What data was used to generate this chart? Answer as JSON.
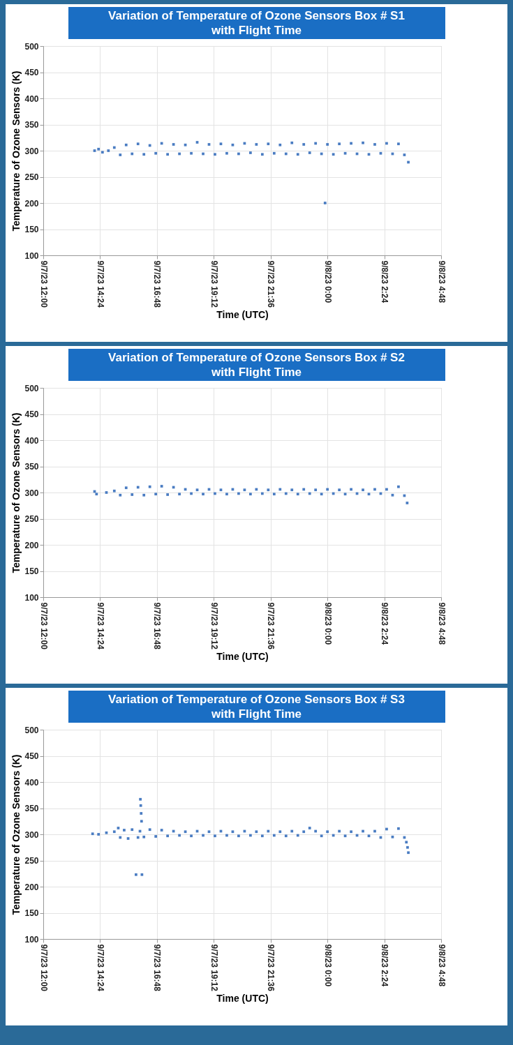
{
  "chart_data": [
    {
      "type": "scatter",
      "title": "Variation of Temperature of Ozone Sensors Box # S1 with Flight Time",
      "xlabel": "Time (UTC)",
      "ylabel": "Temperature of Ozone Sensors (K)",
      "color": "#4a7cc2",
      "marker": "square",
      "grid": true,
      "x": [
        "--09-07T14:10",
        "--09-07T14:20",
        "--09-07T14:30",
        "--09-07T14:45",
        "--09-07T15:00",
        "--09-07T15:15",
        "--09-07T15:30",
        "--09-07T15:45",
        "--09-07T16:00",
        "--09-07T16:15",
        "--09-07T16:30",
        "--09-07T16:45",
        "--09-07T17:00",
        "--09-07T17:15",
        "--09-07T17:30",
        "--09-07T17:45",
        "--09-07T18:00",
        "--09-07T18:15",
        "--09-07T18:30",
        "--09-07T18:45",
        "--09-07T19:00",
        "--09-07T19:15",
        "--09-07T19:30",
        "--09-07T19:45",
        "--09-07T20:00",
        "--09-07T20:15",
        "--09-07T20:30",
        "--09-07T20:45",
        "--09-07T21:00",
        "--09-07T21:15",
        "--09-07T21:30",
        "--09-07T21:45",
        "--09-07T22:00",
        "--09-07T22:15",
        "--09-07T22:30",
        "--09-07T22:45",
        "--09-07T23:00",
        "--09-07T23:15",
        "--09-07T23:30",
        "--09-07T23:45",
        "--09-08T00:00",
        "--09-08T00:15",
        "--09-08T00:30",
        "--09-08T00:45",
        "--09-08T01:00",
        "--09-08T01:15",
        "--09-08T01:30",
        "--09-08T01:45",
        "--09-08T02:00",
        "--09-08T02:15",
        "--09-08T02:30",
        "--09-08T02:45",
        "--09-08T03:00",
        "--09-08T03:15",
        "--09-07T23:54",
        "--09-08T03:25"
      ],
      "values": [
        300,
        303,
        297,
        300,
        306,
        292,
        311,
        294,
        313,
        293,
        310,
        295,
        314,
        293,
        312,
        294,
        311,
        295,
        316,
        294,
        312,
        293,
        313,
        295,
        311,
        294,
        314,
        296,
        312,
        293,
        313,
        295,
        311,
        294,
        315,
        293,
        312,
        296,
        314,
        294,
        312,
        293,
        313,
        295,
        314,
        294,
        315,
        293,
        312,
        295,
        314,
        294,
        313,
        292,
        200,
        278
      ],
      "xlim": [
        "--09-07T12:00",
        "--09-08T04:48"
      ],
      "xticks": [
        {
          "value": "--09-07T12:00",
          "label": "9/7/23 12:00"
        },
        {
          "value": "--09-07T14:24",
          "label": "9/7/23 14:24"
        },
        {
          "value": "--09-07T16:48",
          "label": "9/7/23 16:48"
        },
        {
          "value": "--09-07T19:12",
          "label": "9/7/23 19:12"
        },
        {
          "value": "--09-07T21:36",
          "label": "9/7/23 21:36"
        },
        {
          "value": "--09-08T00:00",
          "label": "9/8/23 0:00"
        },
        {
          "value": "--09-08T02:24",
          "label": "9/8/23 2:24"
        },
        {
          "value": "--09-08T04:48",
          "label": "9/8/23 4:48"
        }
      ],
      "ylim": [
        100,
        500
      ],
      "yticks": [
        100,
        150,
        200,
        250,
        300,
        350,
        400,
        450,
        500
      ]
    },
    {
      "type": "scatter",
      "title": "Variation of Temperature of Ozone Sensors Box # S2 with Flight Time",
      "xlabel": "Time (UTC)",
      "ylabel": "Temperature of Ozone Sensors (K)",
      "color": "#4a7cc2",
      "marker": "square",
      "grid": true,
      "x": [
        "--09-07T14:10",
        "--09-07T14:15",
        "--09-07T14:40",
        "--09-07T15:00",
        "--09-07T15:15",
        "--09-07T15:30",
        "--09-07T15:45",
        "--09-07T16:00",
        "--09-07T16:15",
        "--09-07T16:30",
        "--09-07T16:45",
        "--09-07T17:00",
        "--09-07T17:15",
        "--09-07T17:30",
        "--09-07T17:45",
        "--09-07T18:00",
        "--09-07T18:15",
        "--09-07T18:30",
        "--09-07T18:45",
        "--09-07T19:00",
        "--09-07T19:15",
        "--09-07T19:30",
        "--09-07T19:45",
        "--09-07T20:00",
        "--09-07T20:15",
        "--09-07T20:30",
        "--09-07T20:45",
        "--09-07T21:00",
        "--09-07T21:15",
        "--09-07T21:30",
        "--09-07T21:45",
        "--09-07T22:00",
        "--09-07T22:15",
        "--09-07T22:30",
        "--09-07T22:45",
        "--09-07T23:00",
        "--09-07T23:15",
        "--09-07T23:30",
        "--09-07T23:45",
        "--09-08T00:00",
        "--09-08T00:15",
        "--09-08T00:30",
        "--09-08T00:45",
        "--09-08T01:00",
        "--09-08T01:15",
        "--09-08T01:30",
        "--09-08T01:45",
        "--09-08T02:00",
        "--09-08T02:15",
        "--09-08T02:30",
        "--09-08T02:45",
        "--09-08T03:00",
        "--09-08T03:15",
        "--09-08T03:22"
      ],
      "values": [
        302,
        297,
        300,
        303,
        295,
        309,
        296,
        310,
        295,
        311,
        297,
        312,
        296,
        310,
        297,
        306,
        298,
        305,
        297,
        306,
        298,
        305,
        297,
        306,
        298,
        305,
        297,
        306,
        298,
        305,
        297,
        306,
        298,
        305,
        297,
        306,
        298,
        305,
        297,
        306,
        298,
        305,
        297,
        306,
        298,
        305,
        297,
        306,
        298,
        306,
        295,
        311,
        294,
        280
      ],
      "xlim": [
        "--09-07T12:00",
        "--09-08T04:48"
      ],
      "xticks": [
        {
          "value": "--09-07T12:00",
          "label": "9/7/23 12:00"
        },
        {
          "value": "--09-07T14:24",
          "label": "9/7/23 14:24"
        },
        {
          "value": "--09-07T16:48",
          "label": "9/7/23 16:48"
        },
        {
          "value": "--09-07T19:12",
          "label": "9/7/23 19:12"
        },
        {
          "value": "--09-07T21:36",
          "label": "9/7/23 21:36"
        },
        {
          "value": "--09-08T00:00",
          "label": "9/8/23 0:00"
        },
        {
          "value": "--09-08T02:24",
          "label": "9/8/23 2:24"
        },
        {
          "value": "--09-08T04:48",
          "label": "9/8/23 4:48"
        }
      ],
      "ylim": [
        100,
        500
      ],
      "yticks": [
        100,
        150,
        200,
        250,
        300,
        350,
        400,
        450,
        500
      ]
    },
    {
      "type": "scatter",
      "title": "Variation of Temperature of Ozone Sensors Box # S3 with Flight Time",
      "xlabel": "Time (UTC)",
      "ylabel": "Temperature of Ozone Sensors (K)",
      "color": "#4a7cc2",
      "marker": "square",
      "grid": true,
      "x": [
        "--09-07T14:05",
        "--09-07T14:20",
        "--09-07T14:40",
        "--09-07T15:00",
        "--09-07T15:10",
        "--09-07T15:15",
        "--09-07T15:25",
        "--09-07T15:35",
        "--09-07T15:45",
        "--09-07T15:55",
        "--09-07T16:00",
        "--09-07T16:05",
        "--09-07T16:06",
        "--09-07T16:07",
        "--09-07T16:08",
        "--09-07T16:09",
        "--09-07T16:10",
        "--09-07T16:15",
        "--09-07T16:30",
        "--09-07T16:45",
        "--09-07T17:00",
        "--09-07T17:15",
        "--09-07T17:30",
        "--09-07T17:45",
        "--09-07T18:00",
        "--09-07T18:15",
        "--09-07T18:30",
        "--09-07T18:45",
        "--09-07T19:00",
        "--09-07T19:15",
        "--09-07T19:30",
        "--09-07T19:45",
        "--09-07T20:00",
        "--09-07T20:15",
        "--09-07T20:30",
        "--09-07T20:45",
        "--09-07T21:00",
        "--09-07T21:15",
        "--09-07T21:30",
        "--09-07T21:45",
        "--09-07T22:00",
        "--09-07T22:15",
        "--09-07T22:30",
        "--09-07T22:45",
        "--09-07T23:00",
        "--09-07T23:15",
        "--09-07T23:30",
        "--09-07T23:45",
        "--09-08T00:00",
        "--09-08T00:15",
        "--09-08T00:30",
        "--09-08T00:45",
        "--09-08T01:00",
        "--09-08T01:15",
        "--09-08T01:30",
        "--09-08T01:45",
        "--09-08T02:00",
        "--09-08T02:15",
        "--09-08T02:30",
        "--09-08T02:45",
        "--09-08T03:00",
        "--09-08T03:15",
        "--09-08T03:20",
        "--09-08T03:23",
        "--09-08T03:25"
      ],
      "values": [
        301,
        300,
        303,
        305,
        312,
        294,
        308,
        292,
        309,
        223,
        294,
        306,
        367,
        355,
        340,
        325,
        223,
        295,
        309,
        296,
        308,
        297,
        306,
        298,
        305,
        297,
        306,
        298,
        305,
        297,
        306,
        298,
        305,
        297,
        306,
        298,
        305,
        297,
        306,
        298,
        305,
        297,
        306,
        298,
        305,
        312,
        306,
        297,
        305,
        298,
        306,
        297,
        305,
        298,
        306,
        297,
        306,
        294,
        310,
        295,
        311,
        294,
        285,
        275,
        265
      ],
      "xlim": [
        "--09-07T12:00",
        "--09-08T04:48"
      ],
      "xticks": [
        {
          "value": "--09-07T12:00",
          "label": "9/7/23 12:00"
        },
        {
          "value": "--09-07T14:24",
          "label": "9/7/23 14:24"
        },
        {
          "value": "--09-07T16:48",
          "label": "9/7/23 16:48"
        },
        {
          "value": "--09-07T19:12",
          "label": "9/7/23 19:12"
        },
        {
          "value": "--09-07T21:36",
          "label": "9/7/23 21:36"
        },
        {
          "value": "--09-08T00:00",
          "label": "9/8/23 0:00"
        },
        {
          "value": "--09-08T02:24",
          "label": "9/8/23 2:24"
        },
        {
          "value": "--09-08T04:48",
          "label": "9/8/23 4:48"
        }
      ],
      "ylim": [
        100,
        500
      ],
      "yticks": [
        100,
        150,
        200,
        250,
        300,
        350,
        400,
        450,
        500
      ]
    }
  ]
}
